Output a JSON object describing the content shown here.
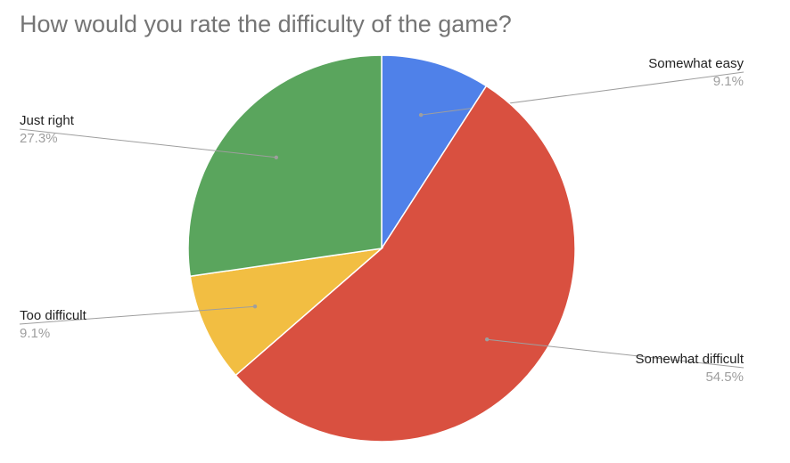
{
  "chart_data": {
    "type": "pie",
    "title": "How would you rate the difficulty of the game?",
    "slices": [
      {
        "label": "Somewhat easy",
        "value": 9.1,
        "display": "9.1%",
        "color": "#4f81e9"
      },
      {
        "label": "Somewhat difficult",
        "value": 54.5,
        "display": "54.5%",
        "color": "#d95040"
      },
      {
        "label": "Too difficult",
        "value": 9.1,
        "display": "9.1%",
        "color": "#f2be42"
      },
      {
        "label": "Just right",
        "value": 27.3,
        "display": "27.3%",
        "color": "#5aa55d"
      }
    ],
    "start_angle": "12 o'clock",
    "direction": "clockwise",
    "legend": "none",
    "label_style": "callout-lines"
  }
}
